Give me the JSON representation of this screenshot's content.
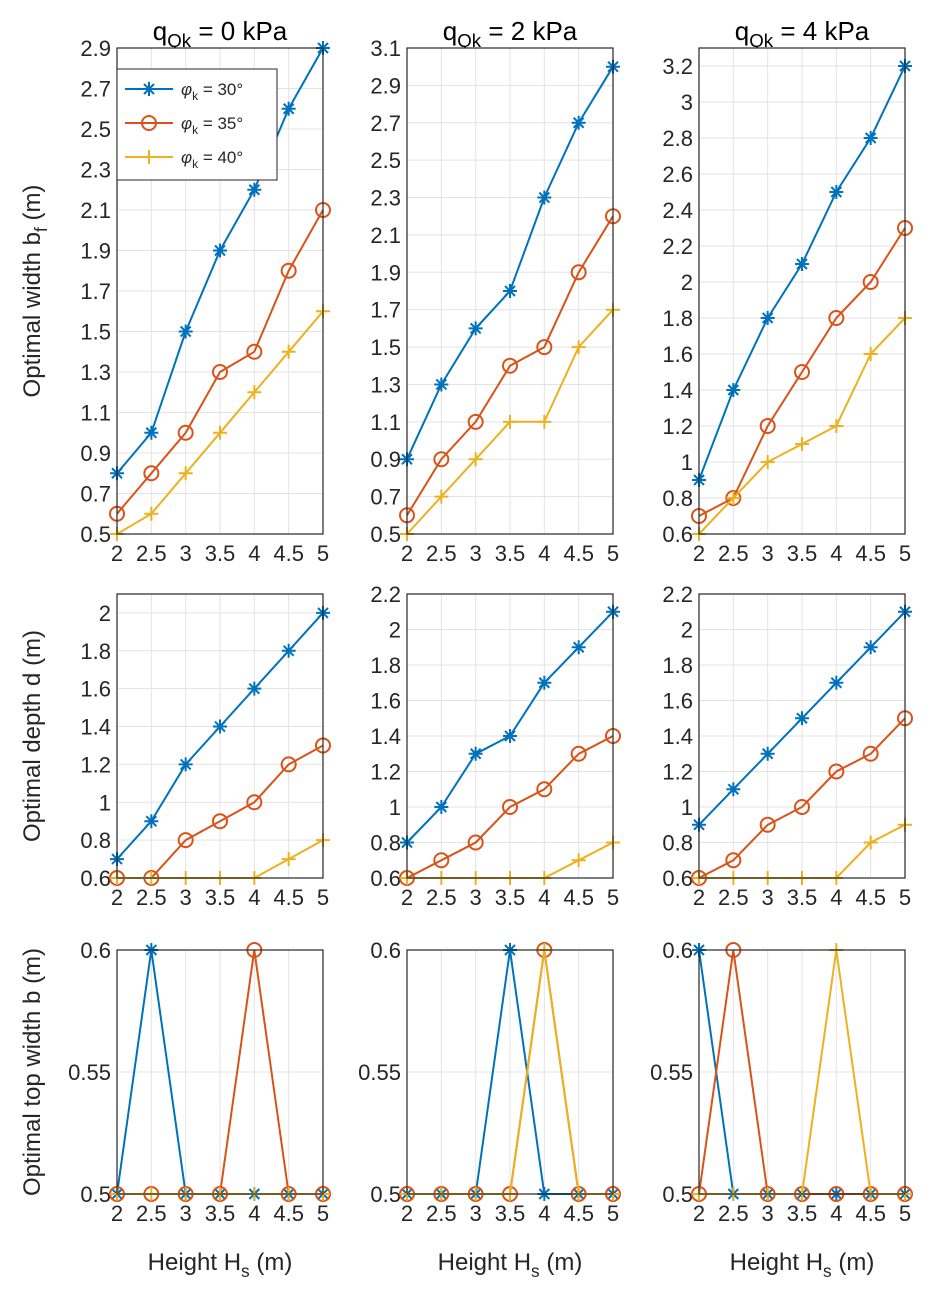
{
  "chart_data": {
    "type": "line",
    "column_titles": [
      {
        "base": "q",
        "sub": "Qk",
        "rest": " = 0 kPa"
      },
      {
        "base": "q",
        "sub": "Qk",
        "rest": " = 2 kPa"
      },
      {
        "base": "q",
        "sub": "Qk",
        "rest": " = 4 kPa"
      }
    ],
    "x": [
      2,
      2.5,
      3,
      3.5,
      4,
      4.5,
      5
    ],
    "x_tick_labels": [
      "2",
      "2.5",
      "3",
      "3.5",
      "4",
      "4.5",
      "5"
    ],
    "xlabel": {
      "base": "Height H",
      "sub": "s",
      "rest": " (m)"
    },
    "row_ylabels": [
      {
        "base": "Optimal width b",
        "sub": "f",
        "rest": " (m)"
      },
      {
        "base": "Optimal depth d (m)",
        "sub": "",
        "rest": ""
      },
      {
        "base": "Optimal top width b (m)",
        "sub": "",
        "rest": ""
      }
    ],
    "legend": [
      {
        "phi": "φ",
        "sub": "k",
        "text": " = 30°",
        "color": "#0072BD",
        "marker": "asterisk"
      },
      {
        "phi": "φ",
        "sub": "k",
        "text": " = 35°",
        "color": "#D95319",
        "marker": "circle"
      },
      {
        "phi": "φ",
        "sub": "k",
        "text": " = 40°",
        "color": "#EDB120",
        "marker": "plus"
      }
    ],
    "panels": [
      [
        {
          "ylim": [
            0.5,
            2.9
          ],
          "yticks": [
            "0.5",
            "0.7",
            "0.9",
            "1.1",
            "1.3",
            "1.5",
            "1.7",
            "1.9",
            "2.1",
            "2.3",
            "2.5",
            "2.7",
            "2.9"
          ],
          "series": [
            [
              0.8,
              1.0,
              1.5,
              1.9,
              2.2,
              2.6,
              2.9
            ],
            [
              0.6,
              0.8,
              1.0,
              1.3,
              1.4,
              1.8,
              2.1
            ],
            [
              0.5,
              0.6,
              0.8,
              1.0,
              1.2,
              1.4,
              1.6
            ]
          ]
        },
        {
          "ylim": [
            0.5,
            3.1
          ],
          "yticks": [
            "0.5",
            "0.7",
            "0.9",
            "1.1",
            "1.3",
            "1.5",
            "1.7",
            "1.9",
            "2.1",
            "2.3",
            "2.5",
            "2.7",
            "2.9",
            "3.1"
          ],
          "series": [
            [
              0.9,
              1.3,
              1.6,
              1.8,
              2.3,
              2.7,
              3.0
            ],
            [
              0.6,
              0.9,
              1.1,
              1.4,
              1.5,
              1.9,
              2.2
            ],
            [
              0.5,
              0.7,
              0.9,
              1.1,
              1.1,
              1.5,
              1.7
            ]
          ]
        },
        {
          "ylim": [
            0.6,
            3.3
          ],
          "yticks": [
            "0.6",
            "0.8",
            "1",
            "1.2",
            "1.4",
            "1.6",
            "1.8",
            "2",
            "2.2",
            "2.4",
            "2.6",
            "2.8",
            "3",
            "3.2"
          ],
          "series": [
            [
              0.9,
              1.4,
              1.8,
              2.1,
              2.5,
              2.8,
              3.2
            ],
            [
              0.7,
              0.8,
              1.2,
              1.5,
              1.8,
              2.0,
              2.3
            ],
            [
              0.6,
              0.8,
              1.0,
              1.1,
              1.2,
              1.6,
              1.8
            ]
          ]
        }
      ],
      [
        {
          "ylim": [
            0.6,
            2.1
          ],
          "yticks": [
            "0.6",
            "0.8",
            "1",
            "1.2",
            "1.4",
            "1.6",
            "1.8",
            "2"
          ],
          "series": [
            [
              0.7,
              0.9,
              1.2,
              1.4,
              1.6,
              1.8,
              2.0
            ],
            [
              0.6,
              0.6,
              0.8,
              0.9,
              1.0,
              1.2,
              1.3
            ],
            [
              0.6,
              0.6,
              0.6,
              0.6,
              0.6,
              0.7,
              0.8
            ]
          ]
        },
        {
          "ylim": [
            0.6,
            2.2
          ],
          "yticks": [
            "0.6",
            "0.8",
            "1",
            "1.2",
            "1.4",
            "1.6",
            "1.8",
            "2",
            "2.2"
          ],
          "series": [
            [
              0.8,
              1.0,
              1.3,
              1.4,
              1.7,
              1.9,
              2.1
            ],
            [
              0.6,
              0.7,
              0.8,
              1.0,
              1.1,
              1.3,
              1.4
            ],
            [
              0.6,
              0.6,
              0.6,
              0.6,
              0.6,
              0.7,
              0.8
            ]
          ]
        },
        {
          "ylim": [
            0.6,
            2.2
          ],
          "yticks": [
            "0.6",
            "0.8",
            "1",
            "1.2",
            "1.4",
            "1.6",
            "1.8",
            "2",
            "2.2"
          ],
          "series": [
            [
              0.9,
              1.1,
              1.3,
              1.5,
              1.7,
              1.9,
              2.1
            ],
            [
              0.6,
              0.7,
              0.9,
              1.0,
              1.2,
              1.3,
              1.5
            ],
            [
              0.6,
              0.6,
              0.6,
              0.6,
              0.6,
              0.8,
              0.9
            ]
          ]
        }
      ],
      [
        {
          "ylim": [
            0.5,
            0.6
          ],
          "yticks": [
            "0.5",
            "0.55",
            "0.6"
          ],
          "series": [
            [
              0.5,
              0.6,
              0.5,
              0.5,
              0.5,
              0.5,
              0.5
            ],
            [
              0.5,
              0.5,
              0.5,
              0.5,
              0.6,
              0.5,
              0.5
            ],
            [
              0.5,
              0.5,
              0.5,
              0.5,
              0.5,
              0.5,
              0.5
            ]
          ]
        },
        {
          "ylim": [
            0.5,
            0.6
          ],
          "yticks": [
            "0.5",
            "0.55",
            "0.6"
          ],
          "series": [
            [
              0.5,
              0.5,
              0.5,
              0.6,
              0.5,
              0.5,
              0.5
            ],
            [
              0.5,
              0.5,
              0.5,
              0.5,
              0.6,
              0.5,
              0.5
            ],
            [
              0.5,
              0.5,
              0.5,
              0.5,
              0.6,
              0.5,
              0.5
            ]
          ]
        },
        {
          "ylim": [
            0.5,
            0.6
          ],
          "yticks": [
            "0.5",
            "0.55",
            "0.6"
          ],
          "series": [
            [
              0.6,
              0.5,
              0.5,
              0.5,
              0.5,
              0.5,
              0.5
            ],
            [
              0.5,
              0.6,
              0.5,
              0.5,
              0.5,
              0.5,
              0.5
            ],
            [
              0.5,
              0.5,
              0.5,
              0.5,
              0.6,
              0.5,
              0.5
            ]
          ]
        }
      ]
    ]
  }
}
